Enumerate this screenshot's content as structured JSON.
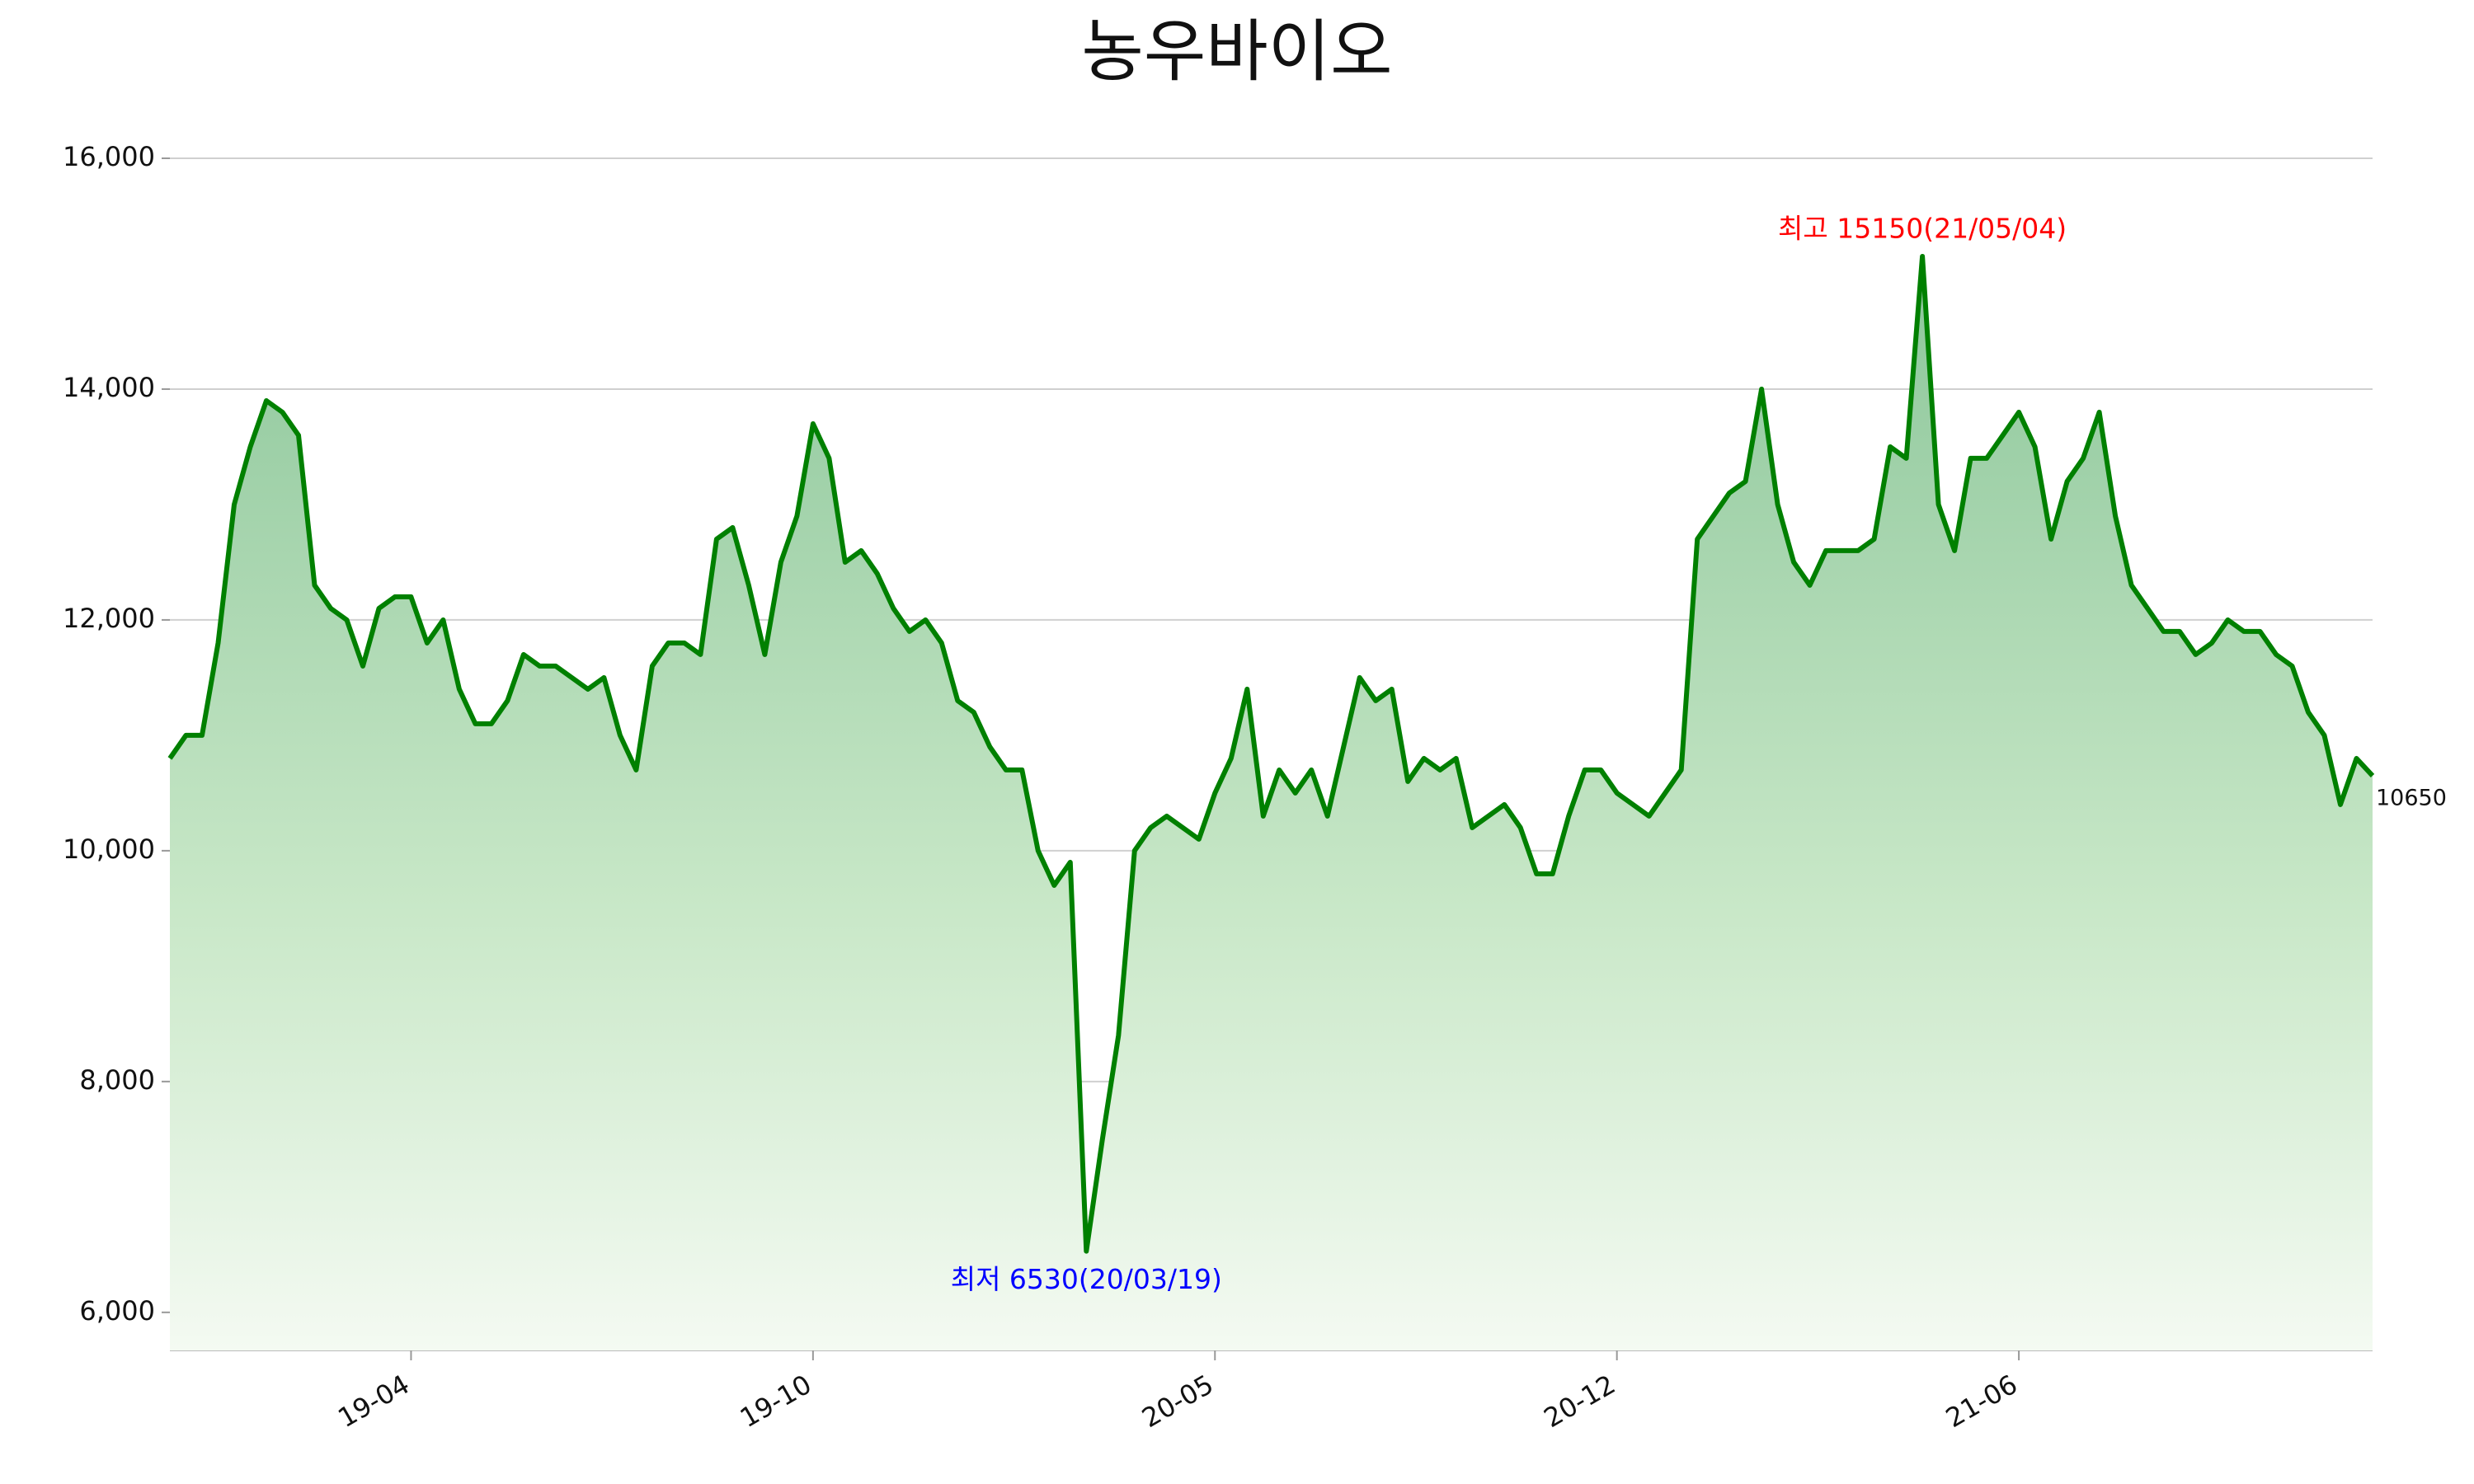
{
  "chart_data": {
    "type": "area",
    "title": "농우바이오",
    "categories": [
      null,
      null,
      null,
      null,
      null,
      null,
      null,
      null,
      null,
      null,
      null,
      null,
      null,
      null,
      null,
      "19-04",
      null,
      null,
      null,
      null,
      null,
      null,
      null,
      null,
      null,
      null,
      null,
      null,
      null,
      null,
      null,
      null,
      null,
      null,
      null,
      null,
      null,
      null,
      null,
      null,
      "19-10",
      null,
      null,
      null,
      null,
      null,
      null,
      null,
      null,
      null,
      null,
      null,
      null,
      null,
      null,
      null,
      null,
      null,
      null,
      null,
      null,
      null,
      null,
      null,
      null,
      "20-05",
      null,
      null,
      null,
      null,
      null,
      null,
      null,
      null,
      null,
      null,
      null,
      null,
      null,
      null,
      null,
      null,
      null,
      null,
      null,
      null,
      null,
      null,
      null,
      null,
      "20-12",
      null,
      null,
      null,
      null,
      null,
      null,
      null,
      null,
      null,
      null,
      null,
      null,
      null,
      null,
      null,
      null,
      null,
      null,
      null,
      null,
      null,
      null,
      null,
      null,
      "21-06",
      null,
      null,
      null,
      null,
      null,
      null,
      null,
      null,
      null,
      null,
      null,
      null,
      null,
      null,
      null,
      null,
      null,
      null,
      null,
      null,
      null,
      null
    ],
    "series": [
      {
        "name": "농우바이오",
        "color": "#008000",
        "values": [
          10800,
          11000,
          11000,
          11800,
          13000,
          13500,
          13900,
          13800,
          13600,
          12300,
          12100,
          12000,
          11600,
          12100,
          12200,
          12200,
          11800,
          12000,
          11400,
          11100,
          11100,
          11300,
          11700,
          11600,
          11600,
          11500,
          11400,
          11500,
          11000,
          10700,
          11600,
          11800,
          11800,
          11700,
          12700,
          12800,
          12300,
          11700,
          12500,
          12900,
          13700,
          13400,
          12500,
          12600,
          12400,
          12100,
          11900,
          12000,
          11800,
          11300,
          11200,
          10900,
          10700,
          10700,
          10000,
          9700,
          9900,
          6530,
          7500,
          8400,
          10000,
          10200,
          10300,
          10200,
          10100,
          10500,
          10800,
          11400,
          10300,
          10700,
          10500,
          10700,
          10300,
          10900,
          11500,
          11300,
          11400,
          10600,
          10800,
          10700,
          10800,
          10200,
          10300,
          10400,
          10200,
          9800,
          9800,
          10300,
          10700,
          10700,
          10500,
          10400,
          10300,
          10500,
          10700,
          12700,
          12900,
          13100,
          13200,
          14000,
          13000,
          12500,
          12300,
          12600,
          12600,
          12600,
          12700,
          13500,
          13400,
          15150,
          13000,
          12600,
          13400,
          13400,
          13600,
          13800,
          13500,
          12700,
          13200,
          13400,
          13800,
          12900,
          12300,
          12100,
          11900,
          11900,
          11700,
          11800,
          12000,
          11900,
          11900,
          11700,
          11600,
          11200,
          11000,
          10400,
          10800,
          10650
        ]
      }
    ],
    "ylim": [
      5670,
      16000
    ],
    "yticks": [
      {
        "value": 6000,
        "label": "6,000"
      },
      {
        "value": 8000,
        "label": "8,000"
      },
      {
        "value": 10000,
        "label": "10,000"
      },
      {
        "value": 12000,
        "label": "12,000"
      },
      {
        "value": 14000,
        "label": "14,000"
      },
      {
        "value": 16000,
        "label": "16,000"
      }
    ],
    "grid": true,
    "annotations": {
      "high": "최고 15150(21/05/04)",
      "low": "최저 6530(20/03/19)"
    },
    "high_color": "#ff0000",
    "low_color": "#0000ff"
  }
}
